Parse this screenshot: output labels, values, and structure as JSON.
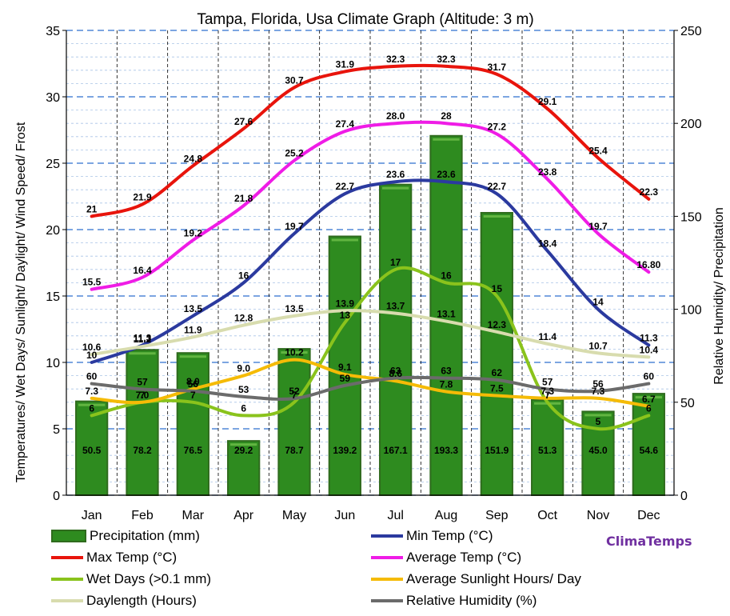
{
  "chart_data": {
    "type": "bar+line",
    "title": "Tampa, Florida, Usa Climate Graph (Altitude: 3 m)",
    "ylabel_left": "Temperatures/ Wet Days/ Sunlight/ Daylight/ Wind Speed/ Frost",
    "ylabel_right": "Relative Humidity/ Precipitation",
    "ylim_left": [
      0,
      35
    ],
    "ylim_right": [
      0,
      250
    ],
    "yticks_left": [
      "0",
      "5",
      "10",
      "15",
      "20",
      "25",
      "30",
      "35"
    ],
    "yticks_right": [
      "0",
      "50",
      "100",
      "150",
      "200",
      "250"
    ],
    "categories": [
      "Jan",
      "Feb",
      "Mar",
      "Apr",
      "May",
      "Jun",
      "Jul",
      "Aug",
      "Sep",
      "Oct",
      "Nov",
      "Dec"
    ],
    "series": [
      {
        "name": "Precipitation (mm)",
        "type": "bar",
        "axis": "right",
        "color": "#2e8b1f",
        "values": [
          50.5,
          78.2,
          76.5,
          29.2,
          78.7,
          139.2,
          167.1,
          193.3,
          151.9,
          51.3,
          45.0,
          54.6
        ],
        "labels": [
          "50.5",
          "78.2",
          "76.5",
          "29.2",
          "78.7",
          "139.2",
          "167.1",
          "193.3",
          "151.9",
          "51.3",
          "45.0",
          "54.6"
        ]
      },
      {
        "name": "Min Temp (°C)",
        "type": "line",
        "axis": "left",
        "color": "#2b3a9f",
        "values": [
          10,
          11.3,
          13.5,
          16,
          19.7,
          22.7,
          23.6,
          23.6,
          22.7,
          18.4,
          14,
          11.3
        ],
        "labels": [
          "10",
          "11.3",
          "13.5",
          "16",
          "19.7",
          "22.7",
          "23.6",
          "23.6",
          "22.7",
          "18.4",
          "14",
          "11.3"
        ]
      },
      {
        "name": "Max Temp (°C)",
        "type": "line",
        "axis": "left",
        "color": "#e8140c",
        "values": [
          21,
          21.9,
          24.8,
          27.6,
          30.7,
          31.9,
          32.3,
          32.3,
          31.7,
          29.1,
          25.4,
          22.3
        ],
        "labels": [
          "21",
          "21.9",
          "24.8",
          "27.6",
          "30.7",
          "31.9",
          "32.3",
          "32.3",
          "31.7",
          "29.1",
          "25.4",
          "22.3"
        ]
      },
      {
        "name": "Average Temp (°C)",
        "type": "line",
        "axis": "left",
        "color": "#ef1ce6",
        "values": [
          15.5,
          16.4,
          19.2,
          21.8,
          25.2,
          27.4,
          28.0,
          28,
          27.2,
          23.8,
          19.7,
          16.8
        ],
        "labels": [
          "15.5",
          "16.4",
          "19.2",
          "21.8",
          "25.2",
          "27.4",
          "28.0",
          "28",
          "27.2",
          "23.8",
          "19.7",
          "16.80"
        ]
      },
      {
        "name": "Wet Days (>0.1 mm)",
        "type": "line",
        "axis": "left",
        "color": "#8ac31c",
        "values": [
          6,
          7,
          7,
          6,
          7,
          13,
          17,
          16,
          15,
          7,
          5,
          6
        ],
        "labels": [
          "6",
          "7",
          "7",
          "6",
          "7",
          "13",
          "17",
          "16",
          "15",
          "7",
          "5",
          "6"
        ]
      },
      {
        "name": "Average Sunlight Hours/ Day",
        "type": "line",
        "axis": "left",
        "color": "#f5bb06",
        "values": [
          7.3,
          7.0,
          8.0,
          9.0,
          10.2,
          9.1,
          8.6,
          7.8,
          7.5,
          7.3,
          7.3,
          6.7
        ],
        "labels": [
          "7.3",
          "7.0",
          "8.0",
          "9.0",
          "10.2",
          "9.1",
          "8.6",
          "7.8",
          "7.5",
          "7.3",
          "7.3",
          "6.7"
        ]
      },
      {
        "name": "Daylength (Hours)",
        "type": "line",
        "axis": "left",
        "color": "#d8dcae",
        "values": [
          10.6,
          11.2,
          11.9,
          12.8,
          13.5,
          13.9,
          13.7,
          13.1,
          12.3,
          11.4,
          10.7,
          10.4
        ],
        "labels": [
          "10.6",
          "11.2",
          "11.9",
          "12.8",
          "13.5",
          "13.9",
          "13.7",
          "13.1",
          "12.3",
          "11.4",
          "10.7",
          "10.4"
        ]
      },
      {
        "name": "Relative Humidity (%)",
        "type": "line",
        "axis": "right",
        "color": "#6b6b6b",
        "values": [
          60,
          57,
          56,
          53,
          52,
          59,
          63,
          63,
          62,
          57,
          56,
          60
        ],
        "labels": [
          "60",
          "57",
          "56",
          "53",
          "52",
          "59",
          "63",
          "63",
          "62",
          "57",
          "56",
          "60"
        ]
      }
    ],
    "legend_position": "bottom",
    "grid": "horizontal dashed, vertical dashed"
  },
  "legend": [
    {
      "label": "Precipitation (mm)",
      "color": "#2e8b1f",
      "kind": "box"
    },
    {
      "label": "Min Temp (°C)",
      "color": "#2b3a9f",
      "kind": "line"
    },
    {
      "label": "Max Temp (°C)",
      "color": "#e8140c",
      "kind": "line"
    },
    {
      "label": "Average Temp (°C)",
      "color": "#ef1ce6",
      "kind": "line"
    },
    {
      "label": "Wet Days (>0.1 mm)",
      "color": "#8ac31c",
      "kind": "line"
    },
    {
      "label": "Average Sunlight Hours/ Day",
      "color": "#f5bb06",
      "kind": "line"
    },
    {
      "label": "Daylength (Hours)",
      "color": "#d8dcae",
      "kind": "line"
    },
    {
      "label": "Relative Humidity (%)",
      "color": "#6b6b6b",
      "kind": "line"
    }
  ],
  "brand": "ClimaTemps"
}
